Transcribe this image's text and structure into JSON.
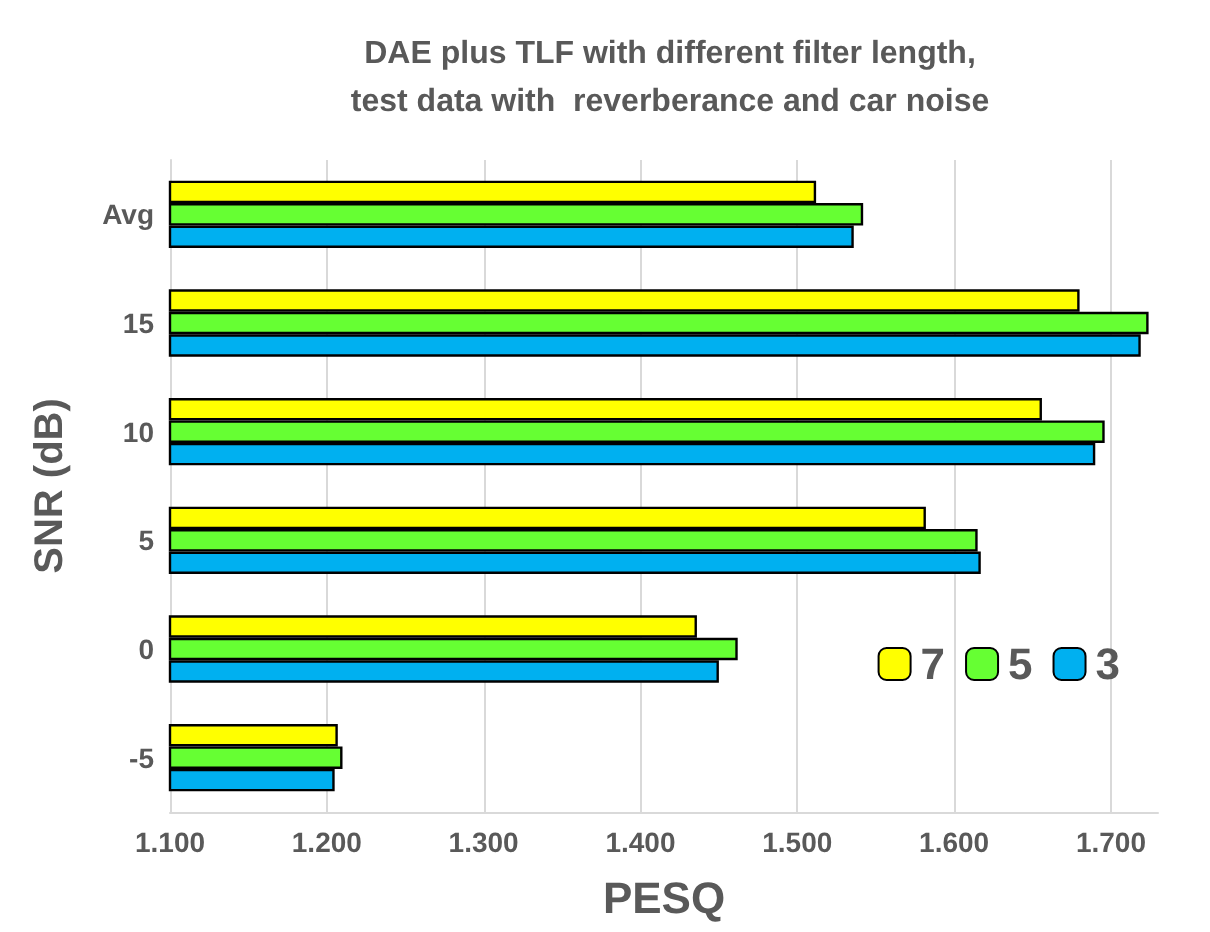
{
  "chart_data": {
    "type": "bar",
    "orientation": "horizontal",
    "title": "DAE plus TLF with different filter length,\ntest data with  reverberance and car noise",
    "xlabel": "PESQ",
    "ylabel": "SNR (dB)",
    "categories": [
      "Avg",
      "15",
      "10",
      "5",
      "0",
      "-5"
    ],
    "series": [
      {
        "name": "7",
        "color": "#ffff00",
        "values": [
          1.512,
          1.68,
          1.656,
          1.582,
          1.436,
          1.207
        ]
      },
      {
        "name": "5",
        "color": "#66ff33",
        "values": [
          1.542,
          1.724,
          1.696,
          1.615,
          1.462,
          1.21
        ]
      },
      {
        "name": "3",
        "color": "#00b0f0",
        "values": [
          1.536,
          1.719,
          1.69,
          1.617,
          1.45,
          1.205
        ]
      }
    ],
    "xlim": [
      1.1,
      1.73
    ],
    "xticks": [
      {
        "value": 1.1,
        "label": "1.100"
      },
      {
        "value": 1.2,
        "label": "1.200"
      },
      {
        "value": 1.3,
        "label": "1.300"
      },
      {
        "value": 1.4,
        "label": "1.400"
      },
      {
        "value": 1.5,
        "label": "1.500"
      },
      {
        "value": 1.6,
        "label": "1.600"
      },
      {
        "value": 1.7,
        "label": "1.700"
      }
    ],
    "grid": "x",
    "legend": "bottom right"
  }
}
